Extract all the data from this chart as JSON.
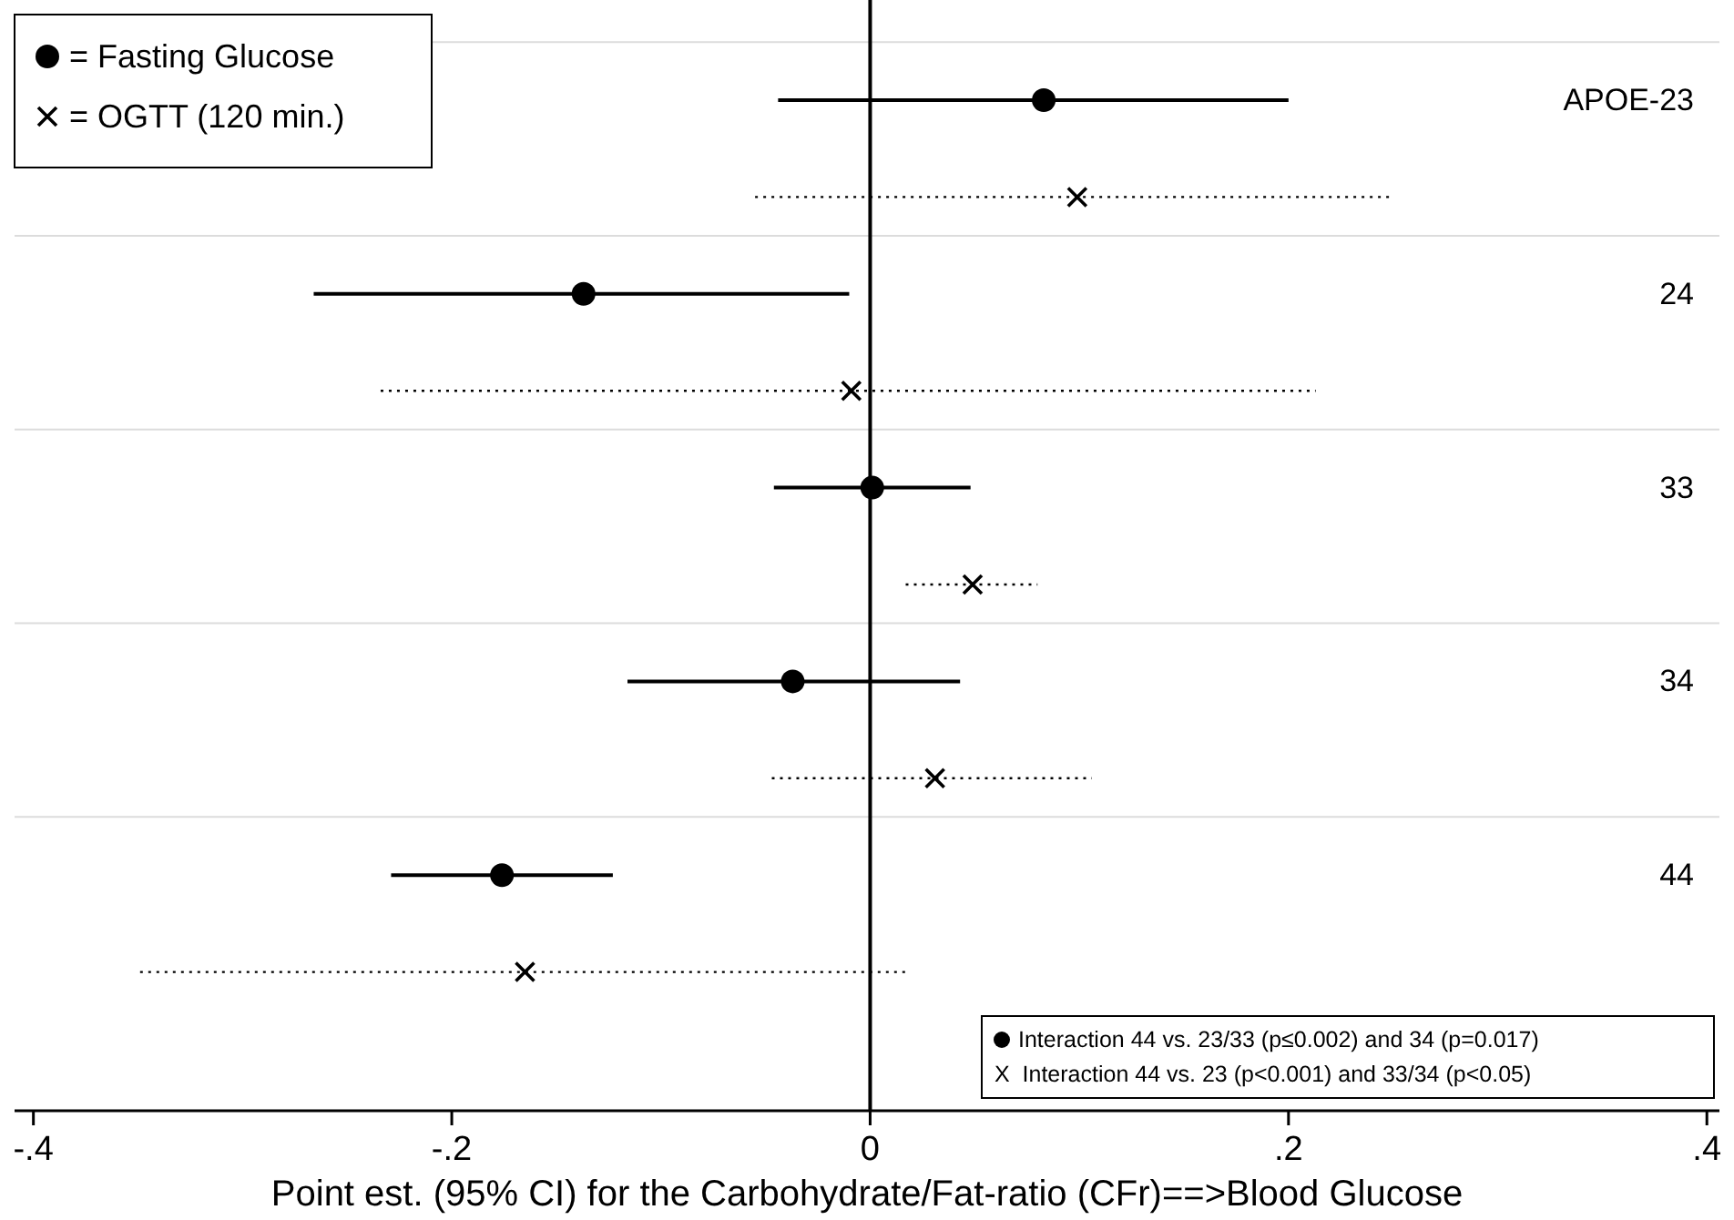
{
  "chart_data": {
    "type": "scatter",
    "orientation": "horizontal",
    "xlabel": "Point est. (95% CI) for the Carbohydrate/Fat-ratio (CFr)==>Blood Glucose",
    "categories": [
      "APOE-23",
      "24",
      "33",
      "34",
      "44"
    ],
    "xlim": [
      -0.409,
      0.406
    ],
    "xticks": [
      {
        "value": -0.4,
        "label": "-.4"
      },
      {
        "value": -0.2,
        "label": "-.2"
      },
      0,
      {
        "value": 0.2,
        "label": ".2"
      },
      {
        "value": 0.4,
        "label": ".4"
      }
    ],
    "grid": "y",
    "legend": "top left",
    "ref_lines": [
      {
        "axis": "x",
        "value": 0,
        "color": "#000000",
        "line_style": "solid"
      }
    ],
    "series": [
      {
        "name": "= Fasting Glucose",
        "color": "#000000",
        "marker": "circle",
        "line_style": "solid",
        "values": [
          0.083,
          -0.137,
          0.001,
          -0.037,
          -0.176
        ],
        "errors": [
          [
            -0.044,
            0.2
          ],
          [
            -0.266,
            -0.01
          ],
          [
            -0.046,
            0.048
          ],
          [
            -0.116,
            0.043
          ],
          [
            -0.229,
            -0.123
          ]
        ]
      },
      {
        "name": "= OGTT (120 min.)",
        "color": "#000000",
        "marker": "cross",
        "line_style": "dotted",
        "values": [
          0.099,
          -0.009,
          0.049,
          0.031,
          -0.165
        ],
        "errors": [
          [
            -0.055,
            0.249
          ],
          [
            -0.234,
            0.213
          ],
          [
            0.017,
            0.08
          ],
          [
            -0.047,
            0.106
          ],
          [
            -0.349,
            0.017
          ]
        ]
      }
    ],
    "annotations": [
      "Interaction 44 vs. 23/33 (p≤0.002) and 34 (p=0.017)",
      "X  Interaction 44 vs. 23 (p<0.001) and 33/34 (p<0.05)"
    ]
  }
}
